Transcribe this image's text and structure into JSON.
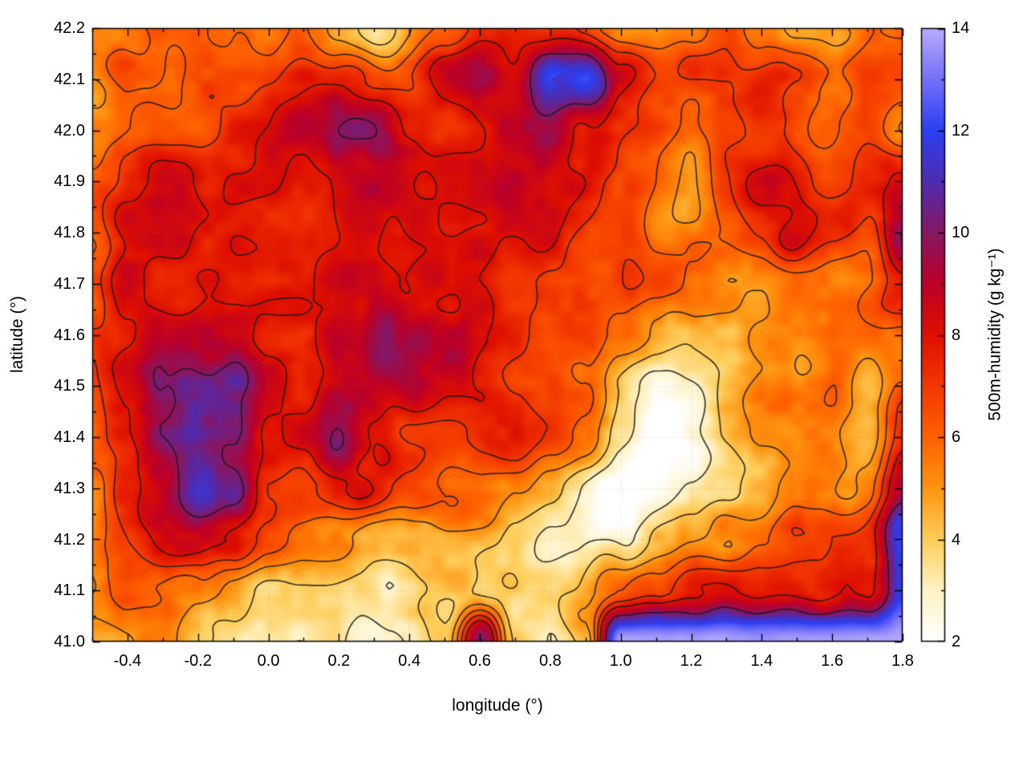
{
  "figure": {
    "xlabel": "longitude (°)",
    "ylabel": "latitude (°)",
    "cblabel": "500m-humidity (g kg⁻¹)"
  },
  "chart_data": {
    "type": "heatmap",
    "title": "",
    "xlabel": "longitude (°)",
    "ylabel": "latitude (°)",
    "colorbar_label": "500m-humidity (g kg⁻¹)",
    "xlim": [
      -0.5,
      1.8
    ],
    "ylim": [
      41.0,
      42.2
    ],
    "zlim": [
      2,
      14
    ],
    "x_ticks": [
      -0.4,
      -0.2,
      0.0,
      0.2,
      0.4,
      0.6,
      0.8,
      1.0,
      1.2,
      1.4,
      1.6,
      1.8
    ],
    "x_tick_labels": [
      "-0.4",
      "-0.2",
      "0.0",
      "0.2",
      "0.4",
      "0.6",
      "0.8",
      "1.0",
      "1.2",
      "1.4",
      "1.6",
      "1.8"
    ],
    "x_minor_step": 0.1,
    "y_ticks": [
      41.0,
      41.1,
      41.2,
      41.3,
      41.4,
      41.5,
      41.6,
      41.7,
      41.8,
      41.9,
      42.0,
      42.1,
      42.2
    ],
    "y_tick_labels": [
      "41.0",
      "41.1",
      "41.2",
      "41.3",
      "41.4",
      "41.5",
      "41.6",
      "41.7",
      "41.8",
      "41.9",
      "42.0",
      "42.1",
      "42.2"
    ],
    "y_minor_step": 0.05,
    "cb_ticks": [
      2,
      4,
      6,
      8,
      10,
      12,
      14
    ],
    "cb_tick_labels": [
      "2",
      "4",
      "6",
      "8",
      "10",
      "12",
      "14"
    ],
    "cb_minor_step": 1,
    "grid_lines": "dotted-gray-at-major-ticks",
    "legend_position": "colorbar-right",
    "contour_levels": [
      3,
      4,
      5,
      6,
      7,
      8,
      10
    ],
    "palette": [
      [
        2,
        [
          255,
          255,
          255
        ]
      ],
      [
        3,
        [
          255,
          243,
          196
        ]
      ],
      [
        4,
        [
          255,
          206,
          90
        ]
      ],
      [
        5,
        [
          255,
          148,
          16
        ]
      ],
      [
        6,
        [
          255,
          96,
          0
        ]
      ],
      [
        7,
        [
          243,
          56,
          0
        ]
      ],
      [
        8,
        [
          224,
          16,
          0
        ]
      ],
      [
        9,
        [
          188,
          0,
          40
        ]
      ],
      [
        10,
        [
          136,
          24,
          100
        ]
      ],
      [
        11,
        [
          80,
          44,
          176
        ]
      ],
      [
        12,
        [
          44,
          64,
          244
        ]
      ],
      [
        13,
        [
          116,
          112,
          250
        ]
      ],
      [
        14,
        [
          182,
          172,
          252
        ]
      ]
    ],
    "grid": {
      "lon": [
        -0.5,
        -0.4,
        -0.3,
        -0.2,
        -0.1,
        0.0,
        0.1,
        0.2,
        0.3,
        0.4,
        0.5,
        0.6,
        0.7,
        0.8,
        0.9,
        1.0,
        1.1,
        1.2,
        1.3,
        1.4,
        1.5,
        1.6,
        1.7,
        1.8
      ],
      "lat_top_to_bottom": [
        42.2,
        42.1,
        42.0,
        41.9,
        41.8,
        41.7,
        41.6,
        41.5,
        41.4,
        41.3,
        41.2,
        41.1,
        41.0
      ],
      "values_g_per_kg": [
        [
          5,
          6,
          7,
          7,
          6,
          6,
          6,
          5,
          4,
          5,
          6,
          7,
          7,
          7,
          6,
          5,
          5,
          6,
          7,
          6,
          5,
          5,
          6,
          6
        ],
        [
          5,
          7,
          7,
          7,
          7,
          7,
          8,
          8,
          7,
          7,
          8,
          9,
          8,
          11,
          12,
          8,
          7,
          7,
          7,
          8,
          7,
          6,
          7,
          7
        ],
        [
          6,
          7,
          7,
          7,
          8,
          8,
          8,
          10,
          10,
          8,
          7,
          7,
          8,
          9,
          8,
          7,
          7,
          6,
          7,
          7,
          6,
          6,
          7,
          6
        ],
        [
          6,
          7,
          8,
          8,
          8,
          8,
          8,
          8,
          8,
          8,
          8,
          8,
          8,
          8,
          8,
          7,
          7,
          6,
          7,
          8,
          7,
          6,
          7,
          8
        ],
        [
          6,
          8,
          8,
          8,
          8,
          8,
          8,
          8,
          8,
          8,
          8,
          8,
          8,
          8,
          7,
          7,
          6,
          6,
          6,
          7,
          8,
          7,
          6,
          9
        ],
        [
          7,
          9,
          8,
          8,
          8,
          8,
          8,
          9,
          9,
          8,
          8,
          8,
          8,
          7,
          7,
          7,
          6,
          5,
          5,
          5,
          6,
          6,
          6,
          7
        ],
        [
          7,
          8,
          9,
          9,
          9,
          8,
          8,
          9,
          10,
          9,
          8,
          8,
          8,
          7,
          7,
          6,
          5,
          4,
          4,
          5,
          5,
          6,
          6,
          6
        ],
        [
          7,
          8,
          10,
          11,
          11,
          9,
          8,
          9,
          9,
          9,
          8,
          8,
          7,
          7,
          6,
          4,
          3,
          3,
          4,
          5,
          5,
          6,
          4,
          6
        ],
        [
          7,
          8,
          10,
          11,
          10,
          8,
          9,
          11,
          9,
          8,
          8,
          8,
          7,
          6,
          5,
          3,
          2,
          3,
          4,
          5,
          5,
          5,
          4,
          7
        ],
        [
          6,
          8,
          9,
          11,
          10,
          7,
          7,
          8,
          8,
          7,
          6,
          6,
          5,
          4,
          3,
          2,
          2,
          3,
          4,
          4,
          5,
          5,
          5,
          8
        ],
        [
          6,
          7,
          8,
          8,
          7,
          6,
          5,
          5,
          4,
          4,
          4,
          4,
          4,
          3,
          3,
          3,
          4,
          4,
          5,
          6,
          7,
          7,
          7,
          12
        ],
        [
          5,
          6,
          6,
          5,
          4,
          3,
          3,
          3,
          3,
          3,
          3,
          3,
          4,
          4,
          4,
          5,
          6,
          7,
          8,
          8,
          8,
          8,
          8,
          12
        ],
        [
          4,
          5,
          5,
          4,
          4,
          3,
          3,
          3,
          3,
          3,
          4,
          10,
          4,
          3,
          5,
          14,
          14,
          14,
          14,
          14,
          14,
          14,
          14,
          14
        ]
      ]
    }
  }
}
